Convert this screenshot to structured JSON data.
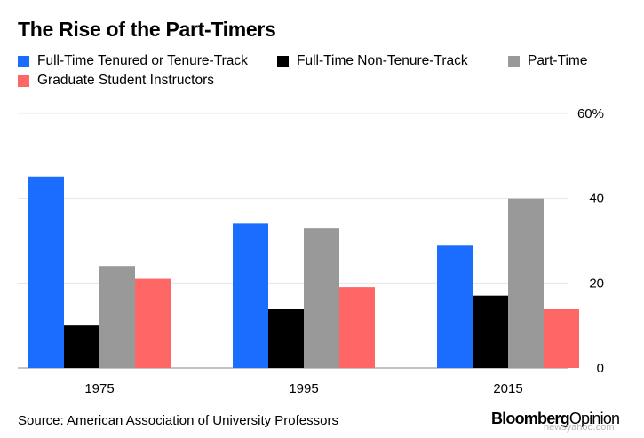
{
  "title": "The Rise of the Part-Timers",
  "legend": [
    {
      "label": "Full-Time Tenured or Tenure-Track",
      "color": "#1a6dff"
    },
    {
      "label": "Full-Time Non-Tenure-Track",
      "color": "#000000"
    },
    {
      "label": "Part-Time",
      "color": "#999999"
    },
    {
      "label": "Graduate Student Instructors",
      "color": "#ff6666"
    }
  ],
  "chart_data": {
    "type": "bar",
    "title": "The Rise of the Part-Timers",
    "categories": [
      "1975",
      "1995",
      "2015"
    ],
    "series": [
      {
        "name": "Full-Time Tenured or Tenure-Track",
        "color": "#1a6dff",
        "values": [
          45,
          34,
          29
        ]
      },
      {
        "name": "Full-Time Non-Tenure-Track",
        "color": "#000000",
        "values": [
          10,
          14,
          17
        ]
      },
      {
        "name": "Part-Time",
        "color": "#999999",
        "values": [
          24,
          33,
          40
        ]
      },
      {
        "name": "Graduate Student Instructors",
        "color": "#ff6666",
        "values": [
          21,
          19,
          14
        ]
      }
    ],
    "ylim": [
      0,
      60
    ],
    "yticks": [
      0,
      20,
      40,
      60
    ],
    "ytick_labels": [
      "0",
      "20",
      "40",
      "60%"
    ],
    "y_axis_side": "right",
    "grid": true,
    "legend_position": "top"
  },
  "source": "Source: American Association of University Professors",
  "brand": {
    "part1": "Bloomberg",
    "part2": "Opinion"
  },
  "watermark": "newsyahoo.com"
}
